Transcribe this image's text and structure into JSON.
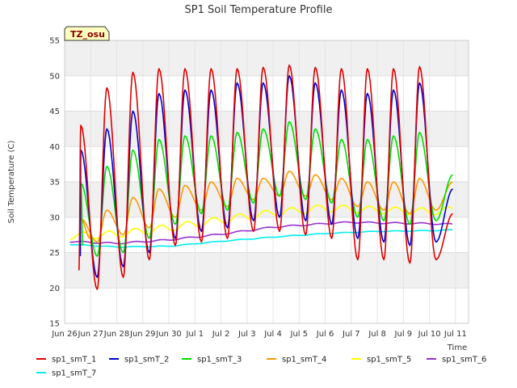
{
  "chart_data": {
    "type": "line",
    "title": "SP1 Soil Temperature Profile",
    "xlabel": "Time",
    "ylabel": "Soil Temperature (C)",
    "ylim": [
      15,
      55
    ],
    "xlim": [
      0,
      15.5
    ],
    "yticks": [
      15,
      20,
      25,
      30,
      35,
      40,
      45,
      50,
      55
    ],
    "xticks": [
      {
        "x": 0,
        "label": "Jun 26"
      },
      {
        "x": 1,
        "label": "Jun 27"
      },
      {
        "x": 2,
        "label": "Jun 28"
      },
      {
        "x": 3,
        "label": "Jun 29"
      },
      {
        "x": 4,
        "label": "Jun 30"
      },
      {
        "x": 5,
        "label": "Jul 1"
      },
      {
        "x": 6,
        "label": "Jul 2"
      },
      {
        "x": 7,
        "label": "Jul 3"
      },
      {
        "x": 8,
        "label": "Jul 4"
      },
      {
        "x": 9,
        "label": "Jul 5"
      },
      {
        "x": 10,
        "label": "Jul 6"
      },
      {
        "x": 11,
        "label": "Jul 7"
      },
      {
        "x": 12,
        "label": "Jul 8"
      },
      {
        "x": 13,
        "label": "Jul 9"
      },
      {
        "x": 14,
        "label": "Jul 10"
      },
      {
        "x": 15,
        "label": "Jul 11"
      }
    ],
    "x_axis_note": "x = days after Jun 26 00:00",
    "grid": true,
    "legend_position": "bottom",
    "station_label": "TZ_osu",
    "series": [
      {
        "name": "sp1_smT_1",
        "color": "#e00000",
        "x0": 0.55,
        "sampling": "daily min/max, min at ~06:00, max at ~15:00",
        "daily_max": [
          43.0,
          48.3,
          50.5,
          51.0,
          51.0,
          51.0,
          51.0,
          51.2,
          51.5,
          51.2,
          51.0,
          51.0,
          51.0,
          51.3
        ],
        "daily_min": [
          22.5,
          19.8,
          21.5,
          24.0,
          26.0,
          26.5,
          27.0,
          28.0,
          28.0,
          27.5,
          27.0,
          24.0,
          24.0,
          23.5,
          24.0
        ],
        "end_value": 30.5
      },
      {
        "name": "sp1_smT_2",
        "color": "#0000cc",
        "x0": 0.6,
        "daily_max": [
          39.5,
          42.5,
          45.0,
          47.5,
          48.0,
          48.0,
          49.0,
          49.0,
          50.0,
          49.0,
          48.0,
          47.5,
          48.0,
          49.0
        ],
        "daily_min": [
          24.5,
          21.5,
          23.0,
          25.0,
          27.0,
          28.0,
          28.5,
          29.5,
          30.0,
          29.5,
          29.0,
          27.0,
          26.5,
          26.0,
          26.5
        ],
        "end_value": 34.0
      },
      {
        "name": "sp1_smT_3",
        "color": "#00dd00",
        "x0": 0.7,
        "daily_max": [
          34.8,
          37.2,
          39.5,
          41.0,
          41.5,
          41.5,
          42.0,
          42.5,
          43.5,
          42.5,
          41.0,
          41.0,
          41.5,
          42.0
        ],
        "daily_min": [
          26.0,
          24.5,
          25.0,
          27.0,
          29.0,
          30.5,
          31.0,
          32.0,
          33.0,
          32.5,
          32.0,
          30.0,
          29.5,
          29.0,
          29.5
        ],
        "end_value": 36.0
      },
      {
        "name": "sp1_smT_4",
        "color": "#ff9900",
        "x0": 0.98,
        "daily_max": [
          29.8,
          31.0,
          32.8,
          34.0,
          34.5,
          35.0,
          35.5,
          35.5,
          36.5,
          36.0,
          35.5,
          35.0,
          35.0,
          35.5
        ],
        "daily_min": [
          27.0,
          26.5,
          27.5,
          28.5,
          30.0,
          31.0,
          31.5,
          32.5,
          33.0,
          33.0,
          32.5,
          31.5,
          31.0,
          30.5,
          31.0
        ],
        "end_value": 35.0
      },
      {
        "name": "sp1_smT_5",
        "color": "#ffff00",
        "x0": 0.2,
        "sampling": "slow trend with small daily oscillation",
        "trend_x": [
          0,
          2,
          4,
          6,
          8,
          10,
          12,
          14,
          14.9
        ],
        "trend_y": [
          27.3,
          27.6,
          28.5,
          29.6,
          30.6,
          31.3,
          31.0,
          30.8,
          31.0
        ],
        "amplitude": 0.5
      },
      {
        "name": "sp1_smT_6",
        "color": "#9933cc",
        "x0": 0.2,
        "trend_x": [
          0,
          2,
          4,
          6,
          8,
          10,
          11,
          12,
          14,
          14.9
        ],
        "trend_y": [
          26.6,
          26.3,
          26.8,
          27.6,
          28.6,
          29.1,
          29.3,
          29.2,
          29.1,
          29.0
        ],
        "amplitude": 0.1
      },
      {
        "name": "sp1_smT_7",
        "color": "#00eeee",
        "x0": 0.2,
        "trend_x": [
          0,
          2,
          4,
          6,
          8,
          10,
          12,
          14,
          14.9
        ],
        "trend_y": [
          26.2,
          25.8,
          25.9,
          26.6,
          27.2,
          27.7,
          28.0,
          28.1,
          28.2
        ],
        "amplitude": 0.05
      }
    ]
  }
}
